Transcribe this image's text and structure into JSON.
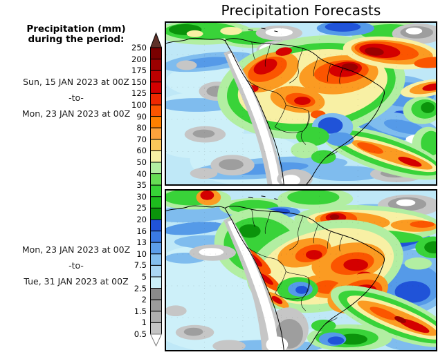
{
  "title": "Precipitation Forecasts",
  "legend": {
    "heading_line1": "Precipitation (mm)",
    "heading_line2": "during the period:",
    "unit": "mm"
  },
  "periods": [
    {
      "start": "Sun, 15 JAN 2023 at 00Z",
      "separator": "-to-",
      "end": "Mon, 23 JAN 2023 at 00Z"
    },
    {
      "start": "Mon, 23 JAN 2023 at 00Z",
      "separator": "-to-",
      "end": "Tue, 31 JAN 2023 at 00Z"
    }
  ],
  "colorbar": {
    "tick_labels_top_to_bottom": [
      "250",
      "200",
      "175",
      "150",
      "125",
      "100",
      "90",
      "80",
      "70",
      "60",
      "50",
      "40",
      "35",
      "30",
      "25",
      "20",
      "16",
      "13",
      "10",
      "7.5",
      "5",
      "2.5",
      "2",
      "1.5",
      "1",
      "0.5"
    ],
    "cell_colors_top_to_bottom": [
      "#7a0000",
      "#9b0000",
      "#bc0000",
      "#d40000",
      "#ee2800",
      "#fb5500",
      "#ff8000",
      "#fca23c",
      "#fbc85a",
      "#f8f0a4",
      "#b2eea2",
      "#66dd55",
      "#37d337",
      "#1dbb1d",
      "#0b930b",
      "#2053d8",
      "#3a7ae2",
      "#5c9ee9",
      "#84bfee",
      "#aad7f3",
      "#cbeff8",
      "#8a8a8a",
      "#9c9c9c",
      "#aeaeae",
      "#c4c4c4"
    ],
    "above_max_color": "#5e3129",
    "below_min_color": "#ffffff"
  },
  "map_palette": {
    "ocean_base": "#bfe8f7",
    "ocean_light": "#cdf0f9",
    "blue_light": "#7fbcee",
    "blue_mid": "#559ae8",
    "blue_dark": "#2053d8",
    "green_pale": "#b2eea2",
    "green": "#39d339",
    "green_dark": "#0b930b",
    "yellow_pale": "#f8f0a4",
    "orange": "#fb9b22",
    "orange_red": "#fb5500",
    "red": "#d40000",
    "red_dark": "#9b0000",
    "dry_gray_light": "#c6c6c6",
    "dry_gray_mid": "#9e9e9e",
    "no_rain_white": "#ffffff",
    "coastline": "#000000"
  }
}
